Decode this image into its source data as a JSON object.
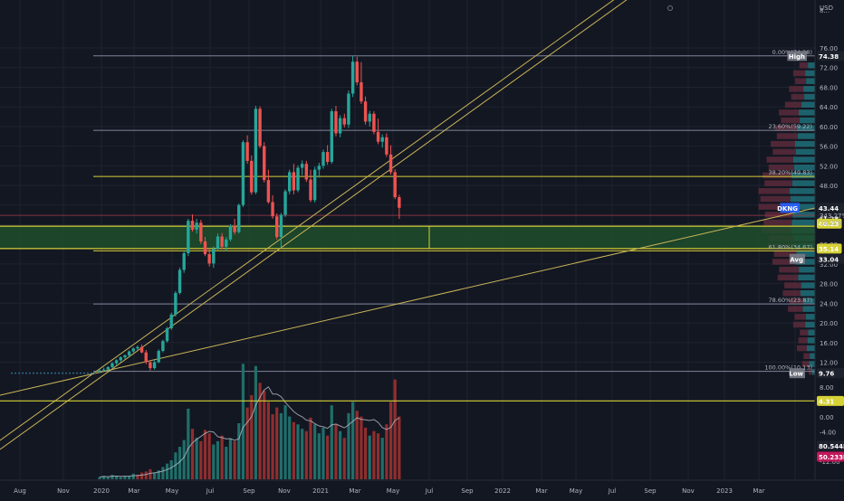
{
  "header": {
    "currency": "USD"
  },
  "colors": {
    "background": "#131722",
    "grid": "#1f2330",
    "up": "#26a69a",
    "down": "#ef5350",
    "vol_up": "#1f6f6a",
    "vol_down": "#8f2e2e",
    "trendline": "#c9b458",
    "fib_line": "#7f8499",
    "fib_key": "#d6d236",
    "zone_fill": "#1f4d2b",
    "volume_ma": "#b8bcc8",
    "text": "#b2b5be"
  },
  "chart_data": {
    "type": "candlestick",
    "symbol": "DKNG",
    "interval": "1W",
    "ylim": [
      8,
      76
    ],
    "x_ticks": [
      "Aug",
      "Nov",
      "2020",
      "Mar",
      "May",
      "Jul",
      "Sep",
      "Nov",
      "2021",
      "Mar",
      "May",
      "Jul",
      "Sep",
      "2022",
      "Mar",
      "May",
      "Jul",
      "Sep",
      "Nov",
      "2023",
      "Mar"
    ],
    "y_ticks": [
      "76.00",
      "72.00",
      "68.00",
      "64.00",
      "60.00",
      "56.00",
      "52.00",
      "48.00",
      "44.00",
      "40.00",
      "36.00",
      "32.00",
      "28.00",
      "24.00",
      "20.00",
      "16.00",
      "12.00"
    ],
    "osc_ticks": [
      "8.00",
      "4.00",
      "0.00",
      "-4.00",
      "-8.00",
      "-12.00"
    ],
    "fib_levels": [
      {
        "label": "0.00%(74.38)",
        "value": 74.38
      },
      {
        "label": "23.60%(59.22)",
        "value": 59.22
      },
      {
        "label": "38.20%(49.83)",
        "value": 49.83
      },
      {
        "label": "61.80%(34.67)",
        "value": 34.67
      },
      {
        "label": "78.60%(23.87)",
        "value": 23.87
      },
      {
        "label": "100.00%(10.13)",
        "value": 10.13
      }
    ],
    "zone": {
      "low": 35.14,
      "high": 39.7
    },
    "price_badges": [
      {
        "label": "High",
        "value": "74.38"
      },
      {
        "label": "DKNG",
        "value": "43.44"
      },
      {
        "label": "",
        "value": "41.28"
      },
      {
        "label": "",
        "value": "40.23"
      },
      {
        "label": "",
        "value": "35.14"
      },
      {
        "label": "Avg",
        "value": "33.04"
      },
      {
        "label": "Low",
        "value": "9.76"
      }
    ],
    "countdown_lines": [
      "343.27%",
      "1d 22h"
    ],
    "osc_badges": [
      "4.31",
      "80.544M",
      "50.233M"
    ],
    "candles": [
      [
        10.1,
        10.6,
        9.8,
        10.3
      ],
      [
        10.3,
        10.9,
        10.0,
        10.5
      ],
      [
        10.5,
        11.2,
        10.3,
        11.0
      ],
      [
        11.0,
        12.0,
        10.8,
        11.8
      ],
      [
        11.8,
        12.6,
        11.4,
        12.4
      ],
      [
        12.4,
        13.2,
        12.0,
        13.0
      ],
      [
        13.0,
        13.6,
        12.6,
        13.4
      ],
      [
        13.4,
        14.4,
        13.1,
        14.2
      ],
      [
        14.2,
        15.0,
        13.9,
        14.8
      ],
      [
        14.8,
        15.4,
        14.4,
        15.1
      ],
      [
        15.1,
        15.6,
        13.8,
        14.0
      ],
      [
        14.0,
        14.5,
        11.6,
        12.0
      ],
      [
        12.0,
        12.4,
        10.3,
        10.8
      ],
      [
        10.8,
        12.4,
        10.5,
        12.0
      ],
      [
        12.0,
        14.6,
        11.8,
        14.3
      ],
      [
        14.3,
        16.6,
        14.0,
        16.3
      ],
      [
        16.3,
        19.2,
        16.0,
        18.9
      ],
      [
        18.9,
        22.1,
        18.6,
        21.7
      ],
      [
        21.7,
        26.5,
        21.3,
        26.1
      ],
      [
        26.1,
        31.3,
        25.8,
        30.8
      ],
      [
        30.8,
        34.7,
        30.2,
        34.2
      ],
      [
        34.2,
        41.2,
        33.6,
        40.8
      ],
      [
        40.8,
        42.1,
        38.6,
        39.0
      ],
      [
        39.0,
        41.2,
        38.2,
        40.4
      ],
      [
        40.4,
        41.0,
        36.1,
        36.6
      ],
      [
        36.6,
        37.5,
        33.6,
        34.0
      ],
      [
        34.0,
        35.3,
        31.5,
        32.1
      ],
      [
        32.1,
        35.6,
        31.2,
        35.1
      ],
      [
        35.1,
        38.2,
        34.6,
        37.6
      ],
      [
        37.6,
        38.3,
        35.0,
        35.5
      ],
      [
        35.5,
        37.5,
        34.6,
        37.0
      ],
      [
        37.0,
        40.1,
        36.6,
        39.8
      ],
      [
        39.8,
        41.2,
        38.0,
        38.5
      ],
      [
        38.5,
        44.3,
        38.2,
        44.0
      ],
      [
        44.0,
        57.2,
        43.6,
        56.8
      ],
      [
        56.8,
        58.2,
        52.4,
        53.0
      ],
      [
        53.0,
        54.1,
        46.1,
        46.6
      ],
      [
        46.6,
        64.2,
        46.2,
        63.6
      ],
      [
        63.6,
        64.1,
        55.6,
        56.0
      ],
      [
        56.0,
        56.8,
        48.6,
        49.1
      ],
      [
        49.1,
        51.2,
        44.3,
        44.6
      ],
      [
        44.6,
        46.0,
        41.2,
        41.7
      ],
      [
        41.7,
        42.3,
        37.0,
        37.5
      ],
      [
        37.5,
        42.4,
        35.2,
        42.0
      ],
      [
        42.0,
        47.2,
        41.6,
        46.8
      ],
      [
        46.8,
        51.2,
        46.2,
        50.7
      ],
      [
        50.7,
        52.4,
        46.2,
        47.0
      ],
      [
        47.0,
        52.1,
        46.6,
        51.6
      ],
      [
        51.6,
        53.1,
        50.1,
        52.4
      ],
      [
        52.4,
        53.0,
        48.7,
        49.2
      ],
      [
        49.2,
        51.2,
        44.6,
        45.0
      ],
      [
        45.0,
        51.8,
        44.5,
        51.2
      ],
      [
        51.2,
        52.6,
        49.6,
        52.0
      ],
      [
        52.0,
        55.3,
        51.4,
        54.8
      ],
      [
        54.8,
        56.2,
        52.2,
        52.8
      ],
      [
        52.8,
        63.6,
        52.4,
        63.1
      ],
      [
        63.1,
        64.2,
        58.0,
        58.6
      ],
      [
        58.6,
        62.3,
        57.8,
        61.7
      ],
      [
        61.7,
        62.6,
        59.8,
        60.4
      ],
      [
        60.4,
        67.3,
        59.7,
        66.7
      ],
      [
        66.7,
        74.4,
        66.0,
        73.2
      ],
      [
        73.2,
        74.2,
        68.4,
        69.0
      ],
      [
        69.0,
        73.1,
        64.6,
        65.1
      ],
      [
        65.1,
        66.1,
        60.4,
        61.0
      ],
      [
        61.0,
        63.2,
        60.0,
        62.6
      ],
      [
        62.6,
        63.1,
        58.4,
        58.9
      ],
      [
        58.9,
        61.6,
        56.4,
        56.9
      ],
      [
        56.9,
        58.4,
        55.7,
        57.8
      ],
      [
        57.8,
        58.6,
        53.8,
        54.3
      ],
      [
        54.3,
        56.2,
        50.2,
        50.7
      ],
      [
        50.7,
        51.3,
        45.2,
        45.6
      ],
      [
        45.6,
        46.1,
        41.2,
        43.44
      ]
    ],
    "volume": [
      [
        2,
        "u"
      ],
      [
        3,
        "u"
      ],
      [
        2,
        "u"
      ],
      [
        4,
        "u"
      ],
      [
        3,
        "u"
      ],
      [
        2,
        "u"
      ],
      [
        3,
        "u"
      ],
      [
        3,
        "u"
      ],
      [
        5,
        "u"
      ],
      [
        4,
        "d"
      ],
      [
        6,
        "d"
      ],
      [
        7,
        "d"
      ],
      [
        9,
        "d"
      ],
      [
        6,
        "u"
      ],
      [
        8,
        "u"
      ],
      [
        11,
        "u"
      ],
      [
        14,
        "u"
      ],
      [
        17,
        "u"
      ],
      [
        24,
        "u"
      ],
      [
        29,
        "u"
      ],
      [
        35,
        "u"
      ],
      [
        63,
        "u"
      ],
      [
        45,
        "d"
      ],
      [
        37,
        "u"
      ],
      [
        34,
        "d"
      ],
      [
        44,
        "d"
      ],
      [
        41,
        "d"
      ],
      [
        31,
        "u"
      ],
      [
        34,
        "u"
      ],
      [
        39,
        "d"
      ],
      [
        29,
        "u"
      ],
      [
        36,
        "u"
      ],
      [
        34,
        "d"
      ],
      [
        50,
        "u"
      ],
      [
        103,
        "u"
      ],
      [
        64,
        "d"
      ],
      [
        75,
        "d"
      ],
      [
        101,
        "u"
      ],
      [
        86,
        "d"
      ],
      [
        79,
        "d"
      ],
      [
        69,
        "d"
      ],
      [
        58,
        "d"
      ],
      [
        64,
        "d"
      ],
      [
        59,
        "u"
      ],
      [
        66,
        "u"
      ],
      [
        56,
        "u"
      ],
      [
        51,
        "d"
      ],
      [
        49,
        "u"
      ],
      [
        45,
        "u"
      ],
      [
        43,
        "d"
      ],
      [
        55,
        "d"
      ],
      [
        49,
        "u"
      ],
      [
        41,
        "u"
      ],
      [
        46,
        "u"
      ],
      [
        39,
        "d"
      ],
      [
        66,
        "u"
      ],
      [
        49,
        "d"
      ],
      [
        43,
        "u"
      ],
      [
        37,
        "d"
      ],
      [
        59,
        "u"
      ],
      [
        69,
        "u"
      ],
      [
        61,
        "d"
      ],
      [
        56,
        "d"
      ],
      [
        46,
        "d"
      ],
      [
        39,
        "u"
      ],
      [
        43,
        "d"
      ],
      [
        41,
        "d"
      ],
      [
        37,
        "u"
      ],
      [
        49,
        "d"
      ],
      [
        69,
        "d"
      ],
      [
        89,
        "d"
      ],
      [
        56,
        "d"
      ]
    ]
  }
}
